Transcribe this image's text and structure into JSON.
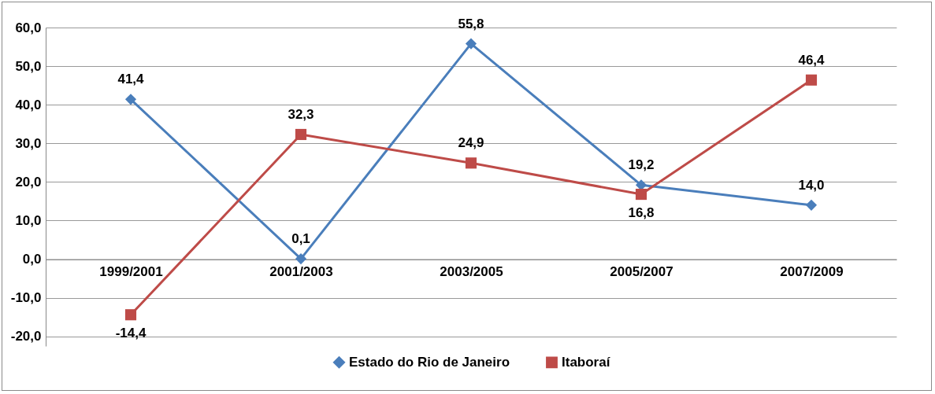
{
  "chart_data": {
    "type": "line",
    "categories": [
      "1999/2001",
      "2001/2003",
      "2003/2005",
      "2005/2007",
      "2007/2009"
    ],
    "series": [
      {
        "name": "Estado do Rio de Janeiro",
        "color": "#4a7ebb",
        "marker": "diamond",
        "values": [
          41.4,
          0.1,
          55.8,
          19.2,
          14.0
        ],
        "value_labels": [
          "41,4",
          "0,1",
          "55,8",
          "19,2",
          "14,0"
        ]
      },
      {
        "name": "Itaboraí",
        "color": "#be4b48",
        "marker": "square",
        "values": [
          -14.4,
          32.3,
          24.9,
          16.8,
          46.4
        ],
        "value_labels": [
          "-14,4",
          "32,3",
          "24,9",
          "16,8",
          "46,4"
        ]
      }
    ],
    "ylim": [
      -22.5,
      60
    ],
    "yticks": [
      {
        "value": -20,
        "label": "-20,0"
      },
      {
        "value": -10,
        "label": "-10,0"
      },
      {
        "value": 0,
        "label": "0,0"
      },
      {
        "value": 10,
        "label": "10,0"
      },
      {
        "value": 20,
        "label": "20,0"
      },
      {
        "value": 30,
        "label": "30,0"
      },
      {
        "value": 40,
        "label": "40,0"
      },
      {
        "value": 50,
        "label": "50,0"
      },
      {
        "value": 60,
        "label": "60,0"
      }
    ],
    "grid": "y",
    "legend": "bottom"
  }
}
